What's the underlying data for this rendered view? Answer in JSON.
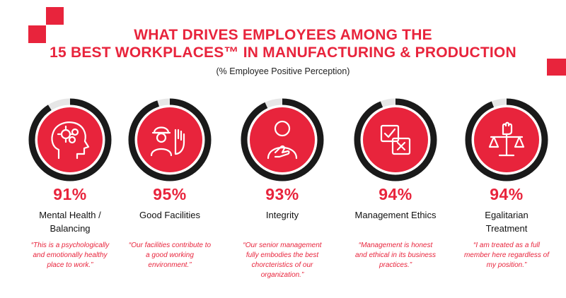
{
  "title_line1": "WHAT DRIVES EMPLOYEES AMONG THE",
  "title_line2": "15 BEST WORKPLACES™ IN MANUFACTURING & PRODUCTION",
  "subtitle": "(% Employee Positive Perception)",
  "colors": {
    "accent": "#e8243c",
    "ring_dark": "#1a1a1a",
    "ring_remaining": "#e6e6e6"
  },
  "chart_data": {
    "type": "donut",
    "title": "WHAT DRIVES EMPLOYEES AMONG THE 15 BEST WORKPLACES™ IN MANUFACTURING & PRODUCTION",
    "subtitle": "(% Employee Positive Perception)",
    "unit": "%",
    "categories": [
      "Mental Health / Balancing",
      "Good Facilities",
      "Integrity",
      "Management Ethics",
      "Egalitarian Treatment"
    ],
    "values": [
      91,
      95,
      93,
      94,
      94
    ],
    "items": [
      {
        "label_lines": [
          "Mental Health /",
          "Balancing"
        ],
        "value": 91,
        "display": "91%",
        "icon": "head-gears-icon",
        "quote_lines": [
          "“This is a psychologically",
          "and emotionally healthy",
          "place to work.”"
        ]
      },
      {
        "label_lines": [
          "Good Facilities"
        ],
        "value": 95,
        "display": "95%",
        "icon": "worker-hand-icon",
        "quote_lines": [
          "“Our facilities contribute to",
          "a good working",
          "environment.”"
        ]
      },
      {
        "label_lines": [
          "Integrity"
        ],
        "value": 93,
        "display": "93%",
        "icon": "hand-on-heart-icon",
        "quote_lines": [
          "“Our senior management",
          "fully embodies the best",
          "chorcteristics of our",
          "organization.”"
        ]
      },
      {
        "label_lines": [
          "Management Ethics"
        ],
        "value": 94,
        "display": "94%",
        "icon": "checklist-icon",
        "quote_lines": [
          "“Management is honest",
          "and ethical in its business",
          "practices.”"
        ]
      },
      {
        "label_lines": [
          "Egalitarian",
          "Treatment"
        ],
        "value": 94,
        "display": "94%",
        "icon": "scales-fist-icon",
        "quote_lines": [
          "“I am treated as a full",
          "member here regardless of",
          "my position.”"
        ]
      }
    ]
  }
}
